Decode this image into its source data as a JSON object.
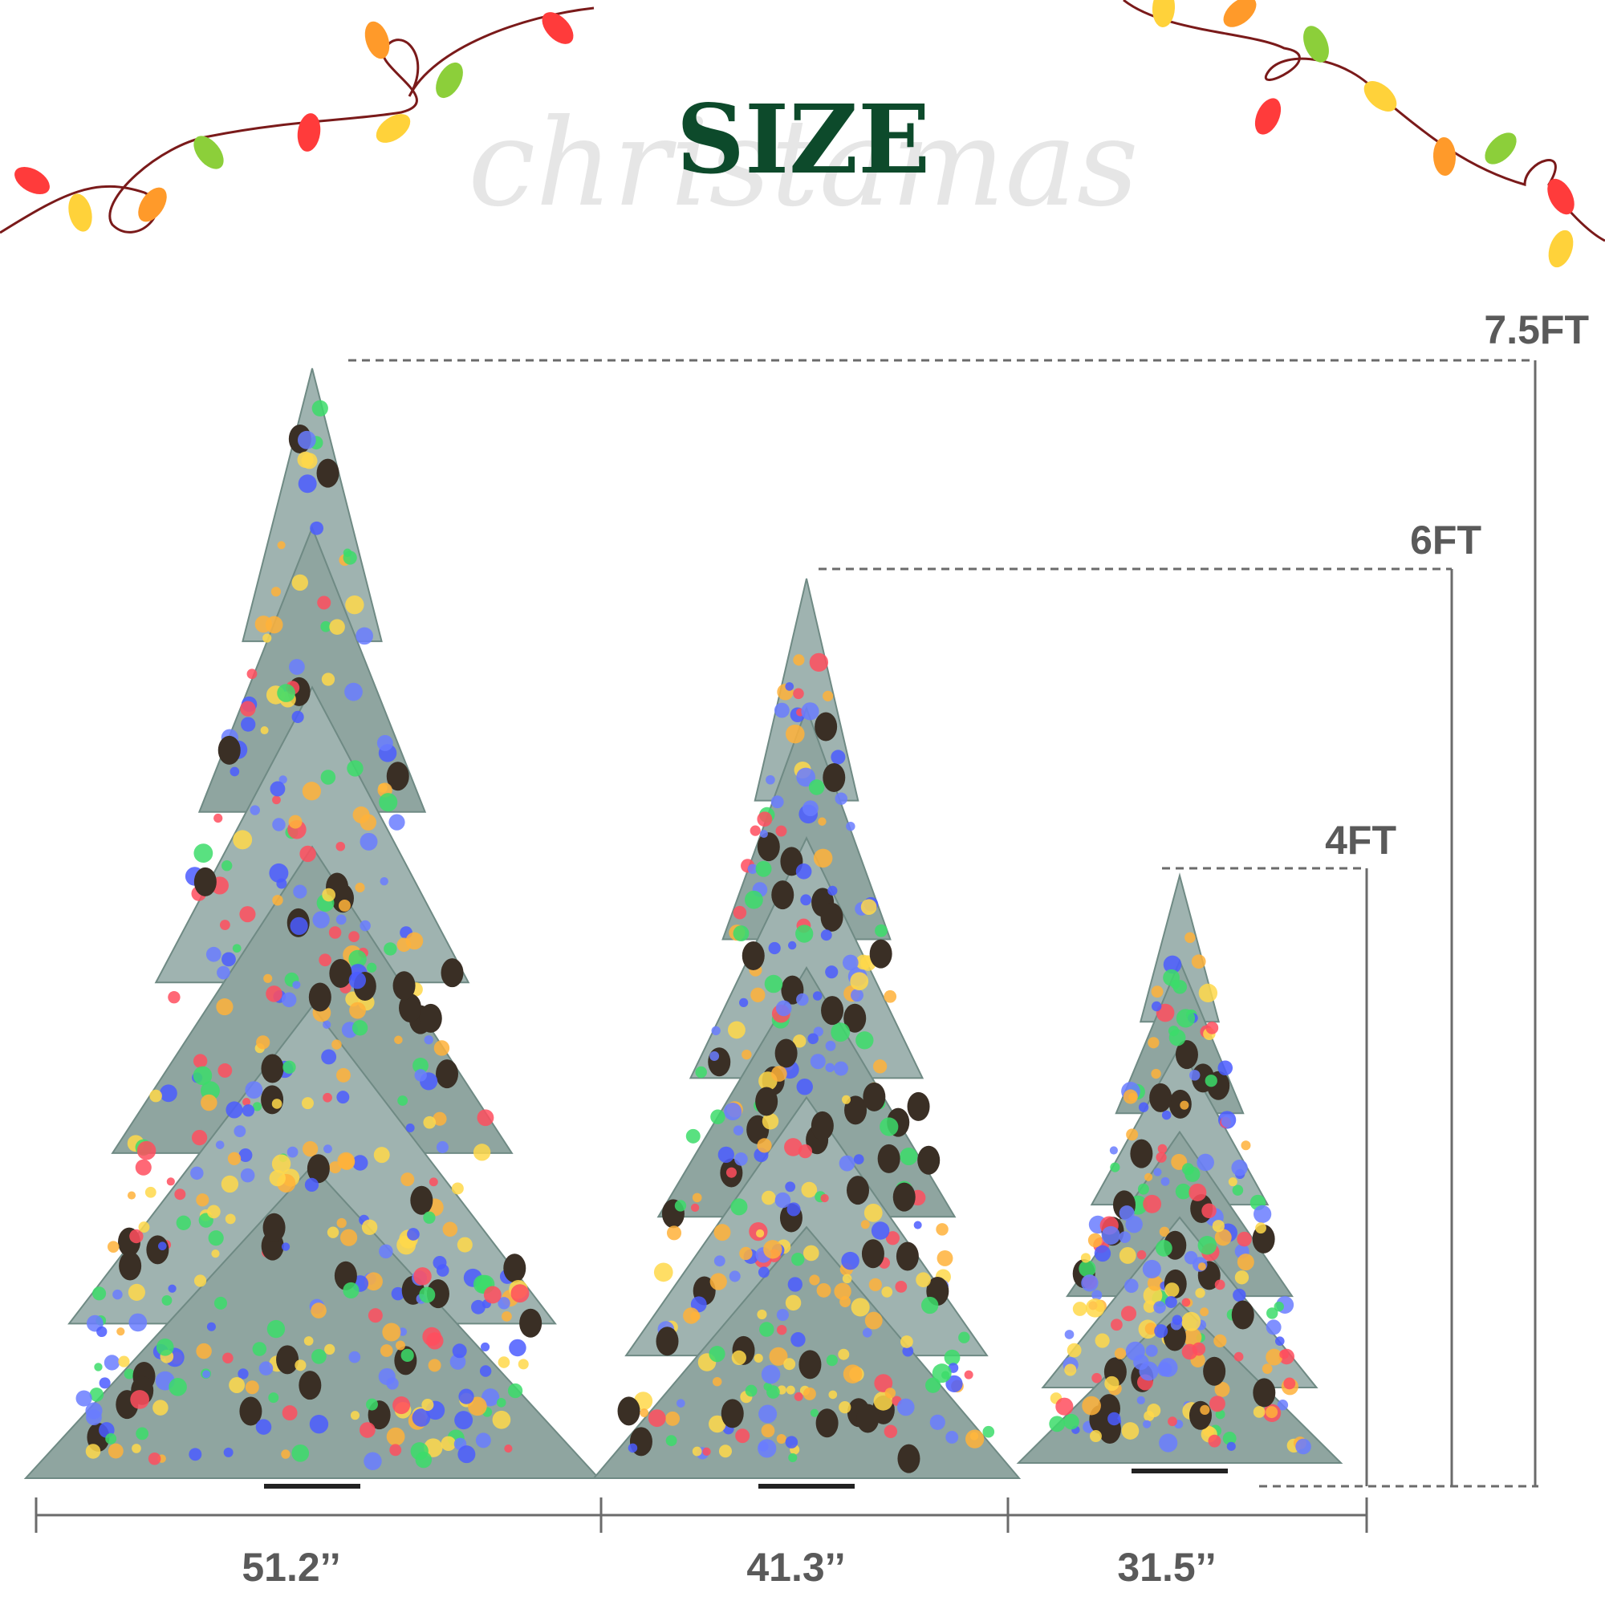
{
  "header": {
    "title": "SIZE",
    "watermark": "christamas"
  },
  "heights": [
    "7.5FT",
    "6FT",
    "4FT"
  ],
  "widths": [
    "51.2’’",
    "41.3’’",
    "31.5’’"
  ]
}
